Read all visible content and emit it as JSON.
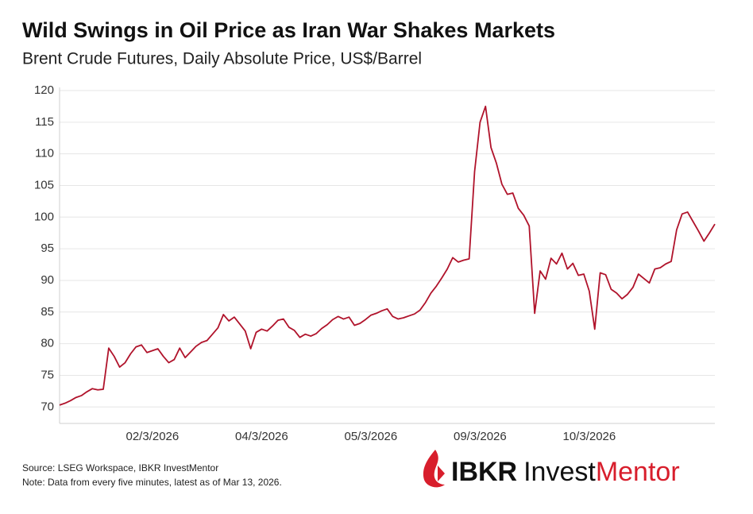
{
  "chart_data": {
    "type": "line",
    "title": "Wild Swings in Oil Price as Iran War Shakes Markets",
    "subtitle": "Brent Crude Futures, Daily Absolute Price, US$/Barrel",
    "categories": [
      null,
      null,
      null,
      null,
      null,
      null,
      null,
      null,
      null,
      null,
      null,
      null,
      null,
      null,
      null,
      null,
      null,
      "02/3/2026",
      null,
      null,
      null,
      null,
      null,
      null,
      null,
      null,
      null,
      null,
      null,
      null,
      null,
      null,
      null,
      null,
      null,
      null,
      null,
      "04/3/2026",
      null,
      null,
      null,
      null,
      null,
      null,
      null,
      null,
      null,
      null,
      null,
      null,
      null,
      null,
      null,
      null,
      null,
      null,
      null,
      "05/3/2026",
      null,
      null,
      null,
      null,
      null,
      null,
      null,
      null,
      null,
      null,
      null,
      null,
      null,
      null,
      null,
      null,
      null,
      null,
      null,
      "09/3/2026",
      null,
      null,
      null,
      null,
      null,
      null,
      null,
      null,
      null,
      null,
      null,
      null,
      null,
      null,
      null,
      null,
      null,
      null,
      null,
      "10/3/2026",
      null,
      null,
      null,
      null,
      null,
      null,
      null,
      null,
      null,
      null,
      null,
      null,
      null,
      null,
      null,
      null,
      null,
      null,
      null,
      null,
      null,
      null,
      null
    ],
    "values": [
      70.3,
      70.6,
      71.0,
      71.5,
      71.8,
      72.4,
      72.9,
      72.7,
      72.8,
      79.3,
      78.0,
      76.3,
      77.0,
      78.4,
      79.5,
      79.8,
      78.6,
      78.9,
      79.2,
      78.0,
      77.0,
      77.5,
      79.3,
      77.8,
      78.7,
      79.6,
      80.2,
      80.5,
      81.5,
      82.5,
      84.6,
      83.6,
      84.2,
      83.1,
      82.0,
      79.2,
      81.8,
      82.3,
      82.0,
      82.8,
      83.7,
      83.9,
      82.6,
      82.1,
      81.0,
      81.5,
      81.2,
      81.6,
      82.4,
      83.0,
      83.8,
      84.3,
      83.9,
      84.2,
      82.9,
      83.2,
      83.8,
      84.5,
      84.8,
      85.2,
      85.5,
      84.3,
      83.9,
      84.1,
      84.4,
      84.7,
      85.3,
      86.5,
      88.0,
      89.1,
      90.4,
      91.8,
      93.6,
      92.9,
      93.2,
      93.4,
      107.2,
      115.0,
      117.5,
      111.0,
      108.5,
      105.2,
      103.6,
      103.8,
      101.4,
      100.3,
      98.6,
      84.8,
      91.5,
      90.2,
      93.5,
      92.6,
      94.3,
      91.8,
      92.7,
      90.8,
      91.0,
      88.3,
      82.3,
      91.2,
      90.9,
      88.6,
      88.0,
      87.1,
      87.8,
      88.9,
      91.0,
      90.3,
      89.6,
      91.8,
      92.0,
      92.6,
      93.0,
      98.0,
      100.5,
      100.8,
      99.3,
      97.8,
      96.2,
      97.5,
      98.9
    ],
    "color": "#b0132b",
    "ylim": [
      67.4,
      120.5
    ],
    "yticks": [
      70,
      75,
      80,
      85,
      90,
      95,
      100,
      105,
      110,
      115,
      120
    ],
    "grid": true
  },
  "footer": {
    "source": "Source: LSEG Workspace, IBKR InvestMentor",
    "note": "Note: Data from every five minutes, latest as of Mar 13, 2026."
  },
  "logo": {
    "brand": "IBKR",
    "invest": "Invest",
    "mentor": "Mentor"
  }
}
